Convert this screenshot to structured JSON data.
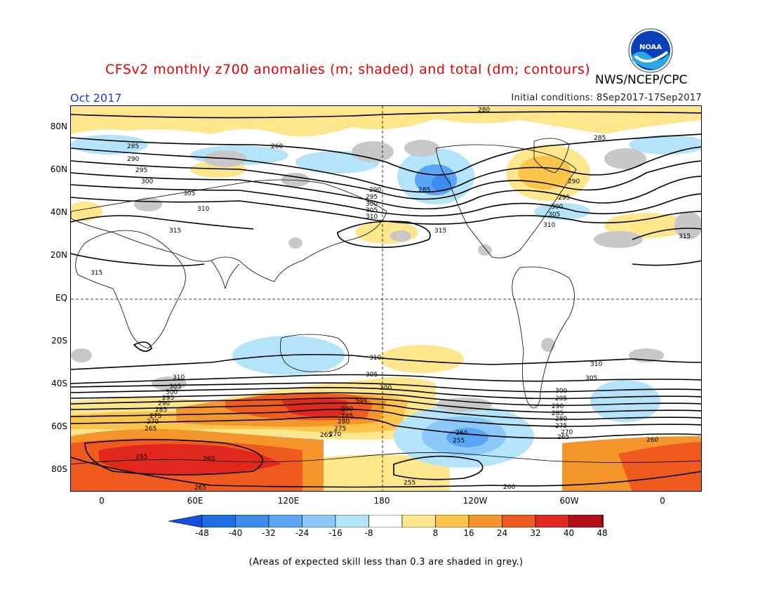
{
  "header": {
    "title": "CFSv2 monthly z700 anomalies (m; shaded) and total (dm; contours)",
    "agency": "NWS/NCEP/CPC",
    "month": "Oct 2017",
    "initial_conditions": "Initial conditions: 8Sep2017-17Sep2017",
    "logo_text": "NOAA"
  },
  "axes": {
    "lat_labels": [
      "80N",
      "60N",
      "40N",
      "20N",
      "EQ",
      "20S",
      "40S",
      "60S",
      "80S"
    ],
    "lon_labels": [
      "0",
      "60E",
      "120E",
      "180",
      "120W",
      "60W",
      "0"
    ]
  },
  "colorbar": {
    "labels": [
      "-48",
      "-40",
      "-32",
      "-24",
      "-16",
      "-8",
      "8",
      "16",
      "24",
      "32",
      "40",
      "48"
    ],
    "colors": [
      "#1e6ee8",
      "#3c8cf0",
      "#5aa5f5",
      "#8cc8f8",
      "#b4e4fa",
      "#ffffff",
      "#fde68c",
      "#fbc44a",
      "#f5962c",
      "#ef5a1e",
      "#e1281e",
      "#b40f14"
    ],
    "end_low_color": "#1450dc",
    "end_high_color": "#a00a0a"
  },
  "contours": {
    "labels": [
      "280",
      "285",
      "290",
      "295",
      "300",
      "305",
      "310",
      "315",
      "260",
      "255",
      "265",
      "270",
      "275"
    ]
  },
  "footnote": "(Areas of expected skill less than 0.3 are shaded in grey.)"
}
